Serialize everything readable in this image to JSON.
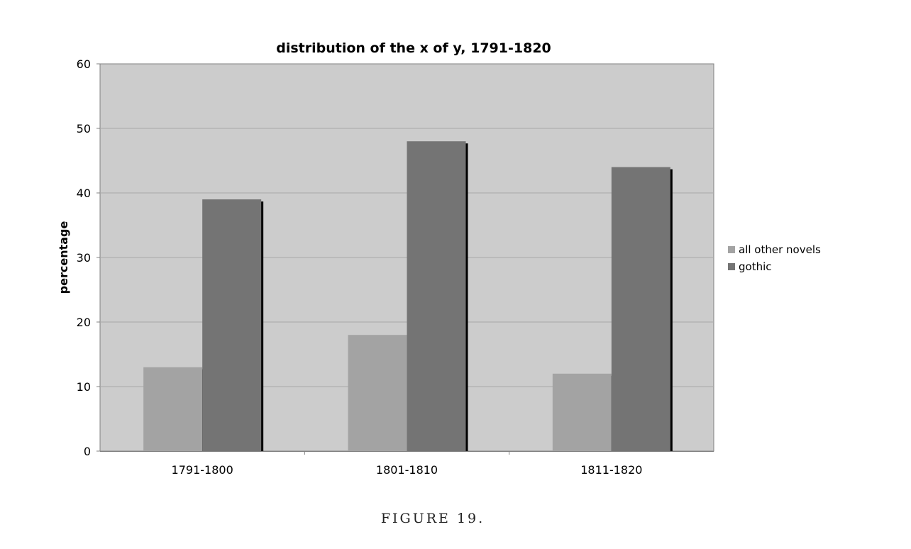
{
  "chart_data": {
    "type": "bar",
    "title": "distribution of the x of y, 1791-1820",
    "xlabel": "",
    "ylabel": "percentage",
    "categories": [
      "1791-1800",
      "1801-1810",
      "1811-1820"
    ],
    "series": [
      {
        "name": "all other novels",
        "values": [
          13,
          18,
          12
        ],
        "color": "#a3a3a3"
      },
      {
        "name": "gothic",
        "values": [
          39,
          48,
          44
        ],
        "color": "#747474"
      }
    ],
    "ylim": [
      0,
      60
    ],
    "yticks": [
      0,
      10,
      20,
      30,
      40,
      50,
      60
    ],
    "grid": true,
    "legend": "right",
    "plot_background": "#cccccc"
  },
  "caption": "FIGURE 19."
}
